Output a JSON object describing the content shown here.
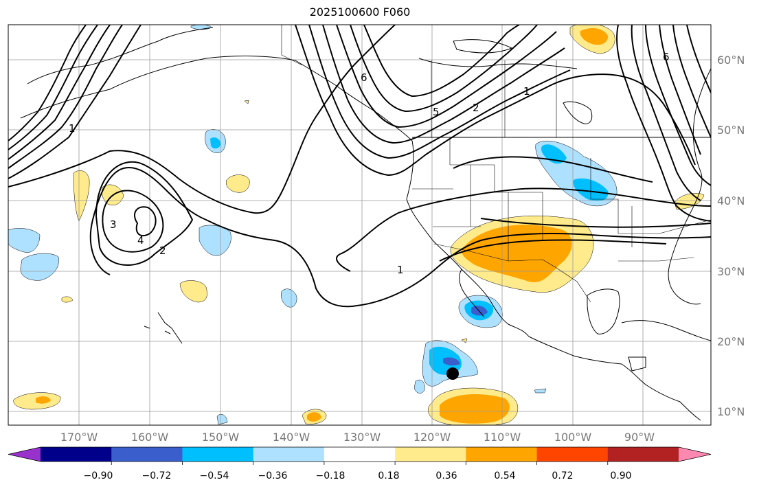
{
  "title": "2025100600 F060",
  "lon_labels": [
    "170°W",
    "160°W",
    "150°W",
    "140°W",
    "130°W",
    "120°W",
    "110°W",
    "100°W",
    "90°W"
  ],
  "lat_labels": [
    "60°N",
    "50°N",
    "40°N",
    "30°N",
    "20°N",
    "10°N"
  ],
  "contour_labels": [
    "1",
    "1",
    "1",
    "2",
    "2",
    "3",
    "4",
    "5",
    "6",
    "6"
  ],
  "colorbar": {
    "ticks": [
      "−0.90",
      "−0.72",
      "−0.54",
      "−0.36",
      "−0.18",
      "0.18",
      "0.36",
      "0.54",
      "0.72",
      "0.90"
    ],
    "colors": [
      "#9932cc",
      "#00008b",
      "#3a5fcd",
      "#00bfff",
      "#aee0ff",
      "#ffffff",
      "#ffeb8c",
      "#ffa500",
      "#ff4500",
      "#b22222",
      "#ff88b0"
    ]
  },
  "marker": {
    "label": "storm-center"
  }
}
